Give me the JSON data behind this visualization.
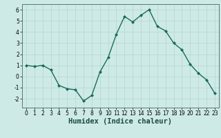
{
  "xlabel": "Humidex (Indice chaleur)",
  "x": [
    0,
    1,
    2,
    3,
    4,
    5,
    6,
    7,
    8,
    9,
    10,
    11,
    12,
    13,
    14,
    15,
    16,
    17,
    18,
    19,
    20,
    21,
    22,
    23
  ],
  "y": [
    1.0,
    0.9,
    1.0,
    0.6,
    -0.8,
    -1.1,
    -1.2,
    -2.2,
    -1.7,
    0.4,
    1.7,
    3.8,
    5.4,
    4.9,
    5.5,
    6.0,
    4.5,
    4.1,
    3.0,
    2.4,
    1.1,
    0.3,
    -0.3,
    -1.5
  ],
  "line_color": "#1a6b5a",
  "marker": "D",
  "marker_size": 2.0,
  "bg_color": "#ceeae7",
  "grid_color": "#b8d8d5",
  "ylim": [
    -2.8,
    6.5
  ],
  "yticks": [
    -2,
    -1,
    0,
    1,
    2,
    3,
    4,
    5,
    6
  ],
  "xlim": [
    -0.5,
    23.5
  ],
  "xticks": [
    0,
    1,
    2,
    3,
    4,
    5,
    6,
    7,
    8,
    9,
    10,
    11,
    12,
    13,
    14,
    15,
    16,
    17,
    18,
    19,
    20,
    21,
    22,
    23
  ],
  "tick_label_fontsize": 5.5,
  "xlabel_fontsize": 7.5,
  "linewidth": 1.0,
  "spine_color": "#557a75"
}
